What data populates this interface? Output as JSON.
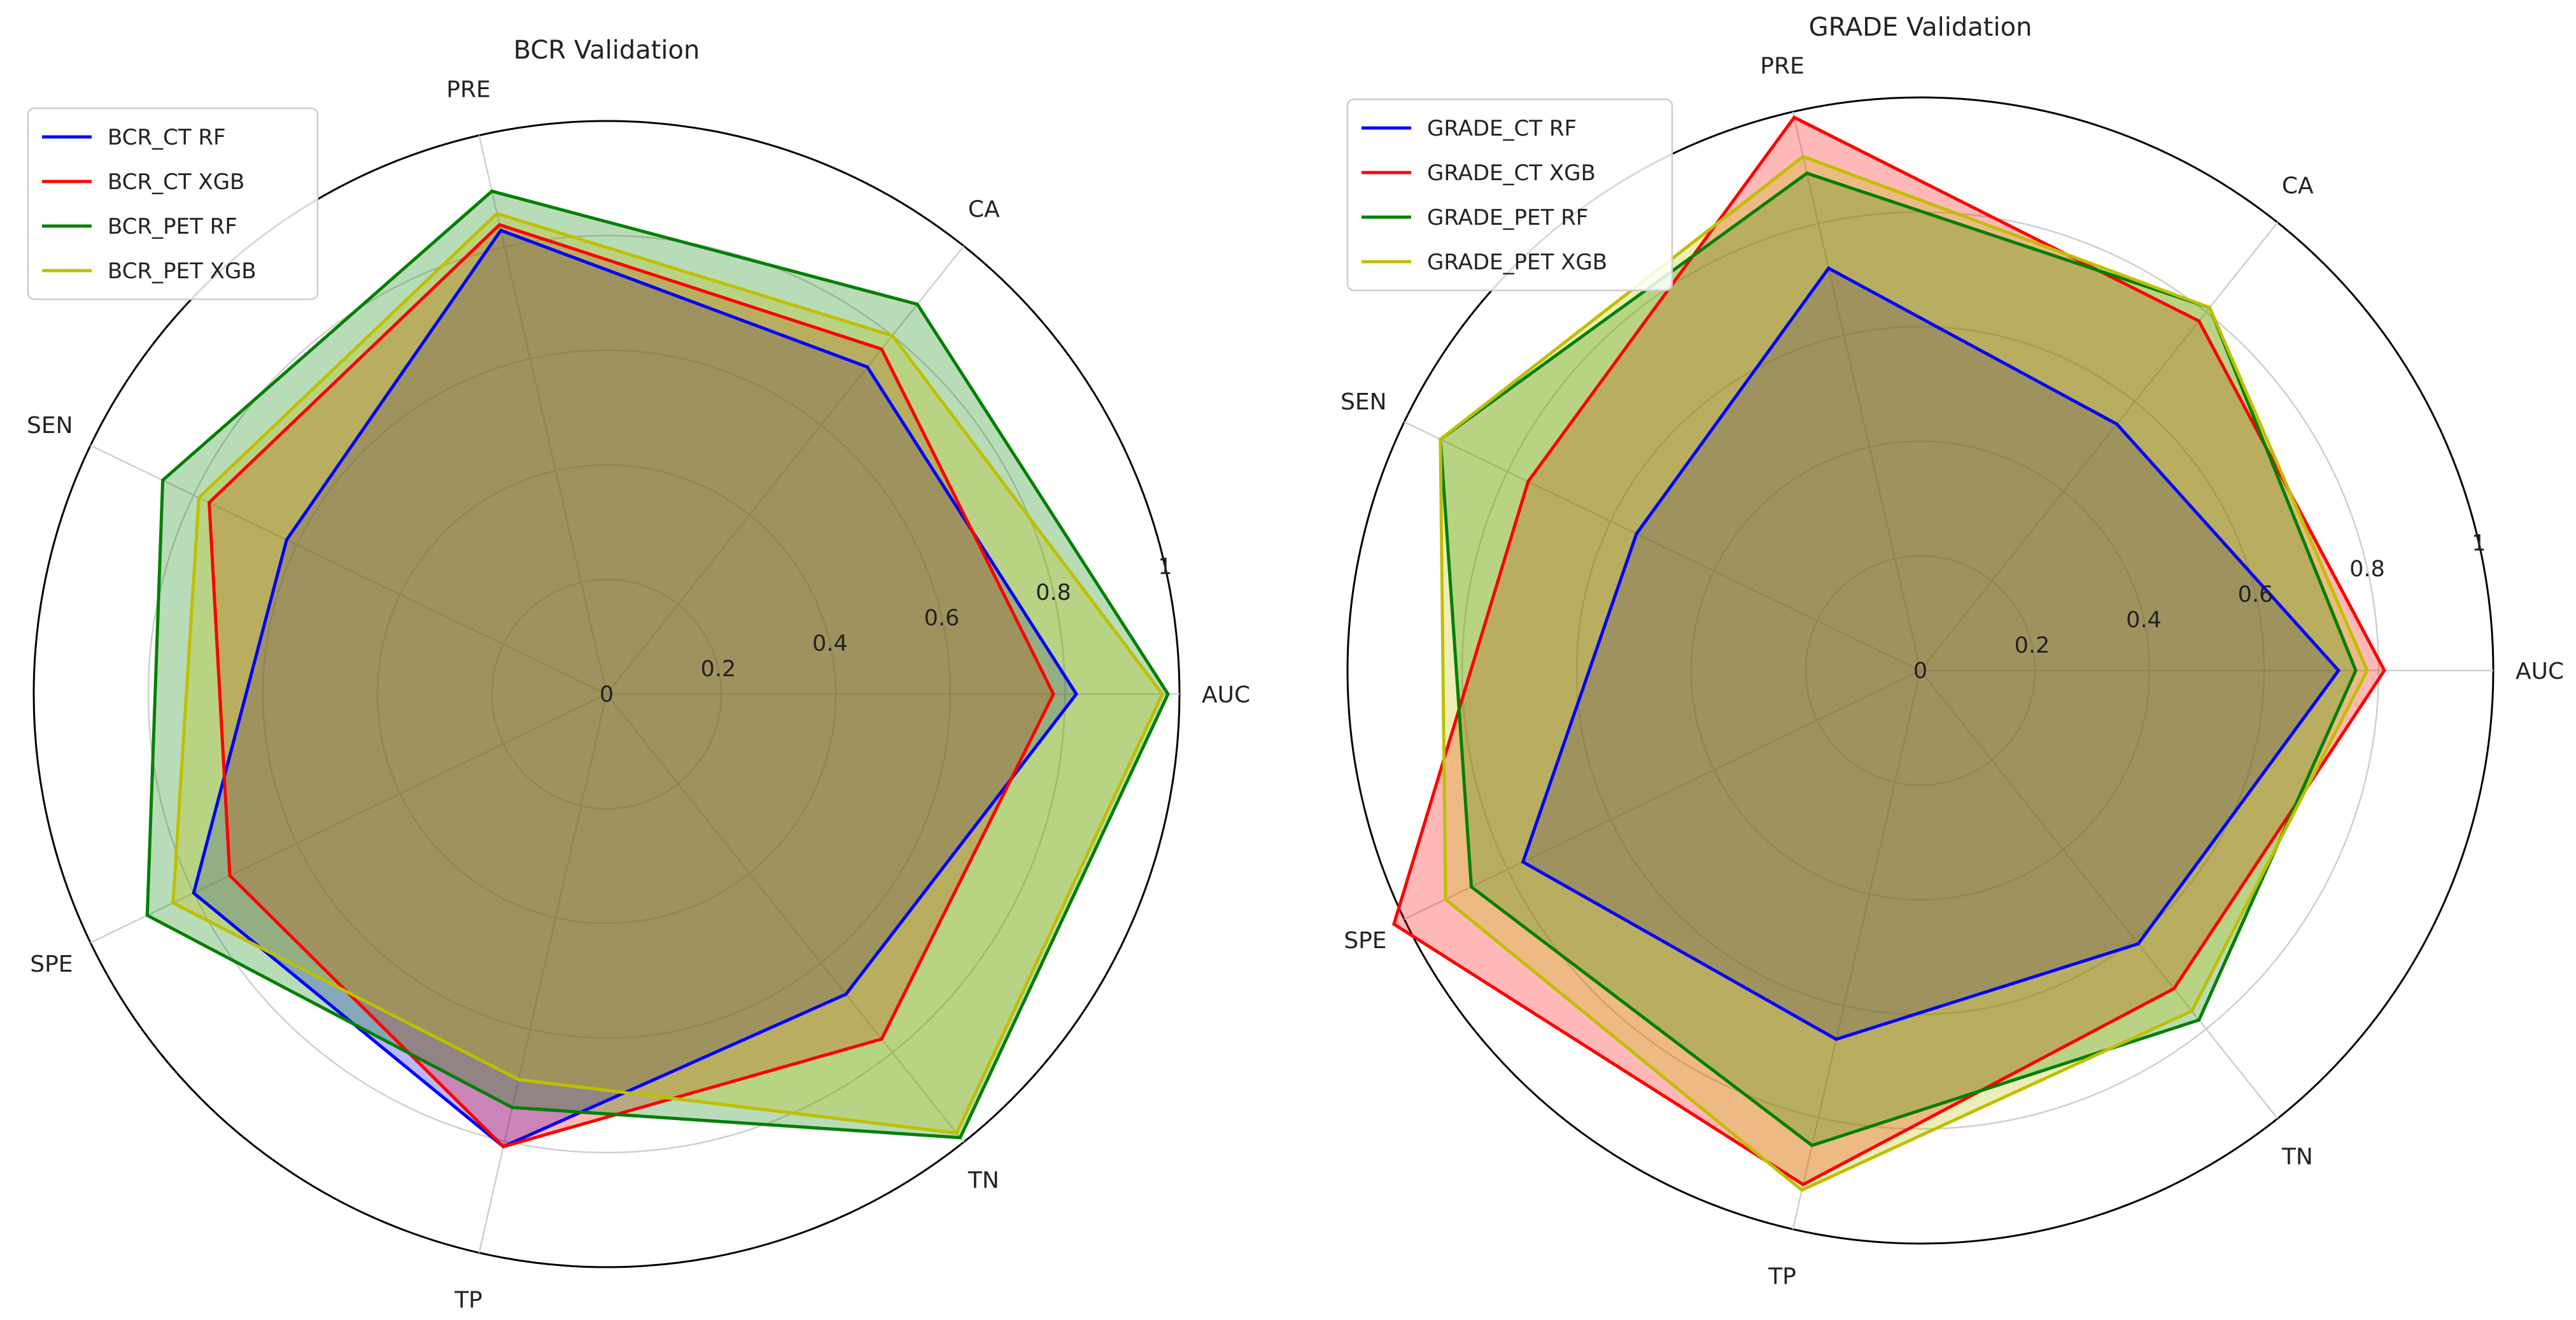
{
  "chart_data": [
    {
      "type": "radar",
      "title": "BCR Validation",
      "categories": [
        "AUC",
        "CA",
        "PRE",
        "SEN",
        "SPE",
        "TP",
        "TN"
      ],
      "rlim": [
        0,
        1
      ],
      "rticks": [
        0,
        0.2,
        0.4,
        0.6,
        0.8,
        1
      ],
      "rtick_labels": [
        "0",
        "0.2",
        "0.4",
        "0.6",
        "0.8",
        "1"
      ],
      "grid": true,
      "legend_position": "top-left",
      "series": [
        {
          "name": "BCR_CT RF",
          "color": "#0000ff",
          "values": [
            0.82,
            0.73,
            0.83,
            0.62,
            0.8,
            0.81,
            0.67
          ]
        },
        {
          "name": "BCR_CT XGB",
          "color": "#ff0000",
          "values": [
            0.78,
            0.77,
            0.84,
            0.77,
            0.73,
            0.81,
            0.77
          ]
        },
        {
          "name": "BCR_PET RF",
          "color": "#008000",
          "values": [
            0.98,
            0.87,
            0.9,
            0.86,
            0.89,
            0.74,
            0.99
          ]
        },
        {
          "name": "BCR_PET XGB",
          "color": "#bfbf00",
          "values": [
            0.97,
            0.8,
            0.86,
            0.79,
            0.84,
            0.69,
            0.98
          ]
        }
      ]
    },
    {
      "type": "radar",
      "title": "GRADE Validation",
      "categories": [
        "AUC",
        "CA",
        "PRE",
        "SEN",
        "SPE",
        "TP",
        "TN"
      ],
      "rlim": [
        0,
        1
      ],
      "rticks": [
        0,
        0.2,
        0.4,
        0.6,
        0.8,
        1
      ],
      "rtick_labels": [
        "0",
        "0.2",
        "0.4",
        "0.6",
        "0.8",
        "1"
      ],
      "grid": true,
      "legend_position": "top-left",
      "series": [
        {
          "name": "GRADE_CT RF",
          "color": "#0000ff",
          "values": [
            0.73,
            0.55,
            0.72,
            0.55,
            0.77,
            0.66,
            0.61
          ]
        },
        {
          "name": "GRADE_CT XGB",
          "color": "#ff0000",
          "values": [
            0.81,
            0.78,
            0.99,
            0.76,
            1.02,
            0.92,
            0.71
          ]
        },
        {
          "name": "GRADE_PET RF",
          "color": "#008000",
          "values": [
            0.76,
            0.81,
            0.89,
            0.93,
            0.87,
            0.85,
            0.78
          ]
        },
        {
          "name": "GRADE_PET XGB",
          "color": "#bfbf00",
          "values": [
            0.78,
            0.81,
            0.92,
            0.93,
            0.92,
            0.93,
            0.76
          ]
        }
      ]
    }
  ]
}
